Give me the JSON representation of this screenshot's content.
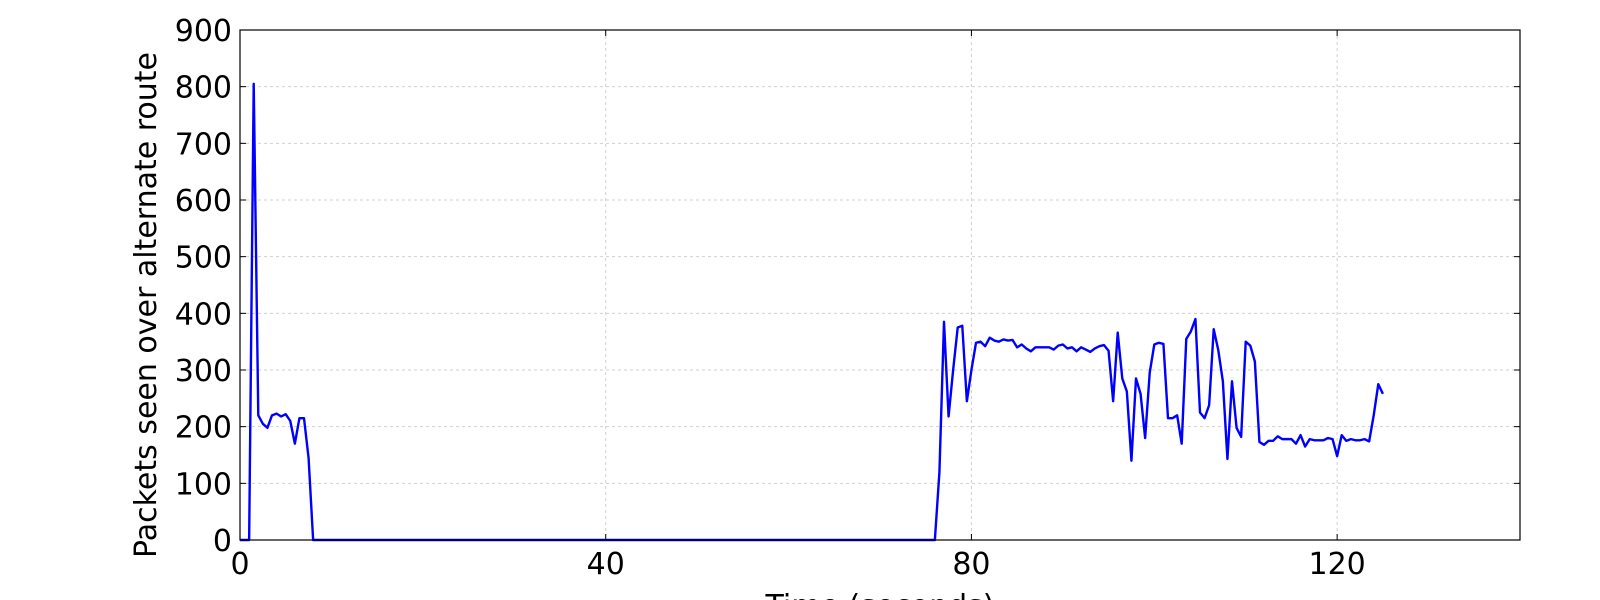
{
  "chart_data": {
    "type": "line",
    "title": "",
    "xlabel": "Time (seconds)",
    "ylabel": "Packets seen over alternate route",
    "xlim": [
      0,
      140
    ],
    "ylim": [
      0,
      900
    ],
    "xticks": [
      0,
      40,
      80,
      120
    ],
    "xtick_labels": [
      "0",
      "40",
      "80",
      "120"
    ],
    "yticks": [
      0,
      100,
      200,
      300,
      400,
      500,
      600,
      700,
      800,
      900
    ],
    "ytick_labels": [
      "0",
      "100",
      "200",
      "300",
      "400",
      "500",
      "600",
      "700",
      "800",
      "900"
    ],
    "grid": true,
    "series_color": "#0000ff",
    "series": [
      {
        "x": [
          0,
          1,
          1.5,
          2,
          2.5,
          3,
          3.5,
          4,
          4.5,
          5,
          5.5,
          6,
          6.5,
          7,
          7.5,
          8,
          76,
          76.5,
          77,
          77.5,
          78,
          78.5,
          79,
          79.5,
          80,
          80.5,
          81,
          81.5,
          82,
          82.5,
          83,
          83.5,
          84,
          84.5,
          85,
          85.5,
          86,
          86.5,
          87,
          87.5,
          88,
          88.5,
          89,
          89.5,
          90,
          90.5,
          91,
          91.5,
          92,
          92.5,
          93,
          93.5,
          94,
          94.5,
          95,
          95.5,
          96,
          96.5,
          97,
          97.5,
          98,
          98.5,
          99,
          99.5,
          100,
          100.5,
          101,
          101.5,
          102,
          102.5,
          103,
          103.5,
          104,
          104.5,
          105,
          105.5,
          106,
          106.5,
          107,
          107.5,
          108,
          108.5,
          109,
          109.5,
          110,
          110.5,
          111,
          111.5,
          112,
          112.5,
          113,
          113.5,
          114,
          114.5,
          115,
          115.5,
          116,
          116.5,
          117,
          117.5,
          118,
          118.5,
          119,
          119.5,
          120,
          120.5,
          121,
          121.5,
          122,
          122.5,
          123,
          123.5,
          124,
          124.5,
          125
        ],
        "y": [
          0,
          0,
          805,
          220,
          205,
          198,
          220,
          223,
          218,
          222,
          210,
          170,
          215,
          215,
          145,
          0,
          0,
          120,
          385,
          218,
          300,
          375,
          378,
          245,
          300,
          348,
          350,
          342,
          357,
          352,
          350,
          354,
          352,
          353,
          340,
          345,
          338,
          333,
          340,
          340,
          340,
          340,
          336,
          343,
          345,
          338,
          340,
          333,
          340,
          336,
          332,
          338,
          342,
          344,
          334,
          245,
          366,
          285,
          262,
          140,
          285,
          258,
          180,
          295,
          345,
          348,
          346,
          215,
          215,
          220,
          170,
          355,
          368,
          390,
          225,
          215,
          238,
          372,
          335,
          280,
          143,
          280,
          198,
          182,
          350,
          343,
          315,
          173,
          168,
          175,
          175,
          183,
          178,
          178,
          178,
          170,
          185,
          165,
          178,
          176,
          176,
          176,
          180,
          178,
          148,
          185,
          175,
          178,
          176,
          176,
          178,
          174,
          220,
          275,
          258
        ]
      }
    ]
  }
}
